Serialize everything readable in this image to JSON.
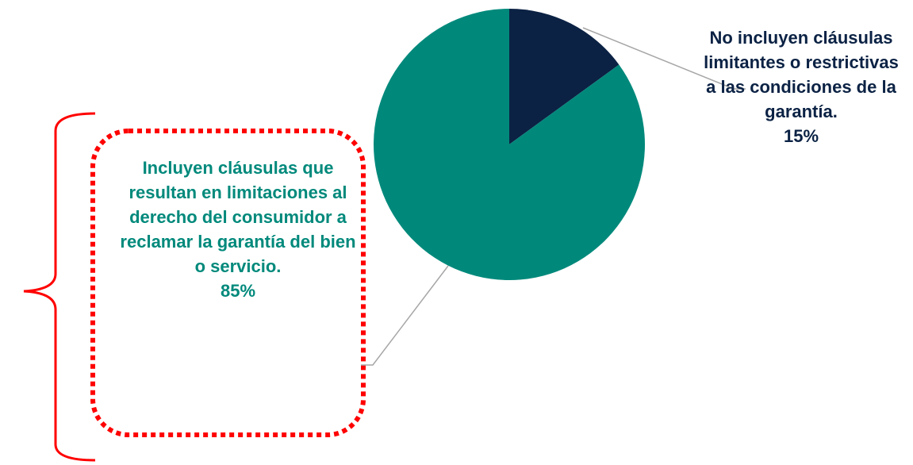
{
  "chart_data": {
    "type": "pie",
    "categories": [
      "No incluyen cláusulas limitantes o restrictivas a las condiciones de la garantía.",
      "Incluyen cláusulas que resultan en limitaciones al derecho del consumidor a reclamar la garantía del bien o servicio."
    ],
    "values": [
      15,
      85
    ],
    "value_labels": [
      "15%",
      "85%"
    ],
    "colors": [
      "#0b2244",
      "#00897b"
    ]
  }
}
